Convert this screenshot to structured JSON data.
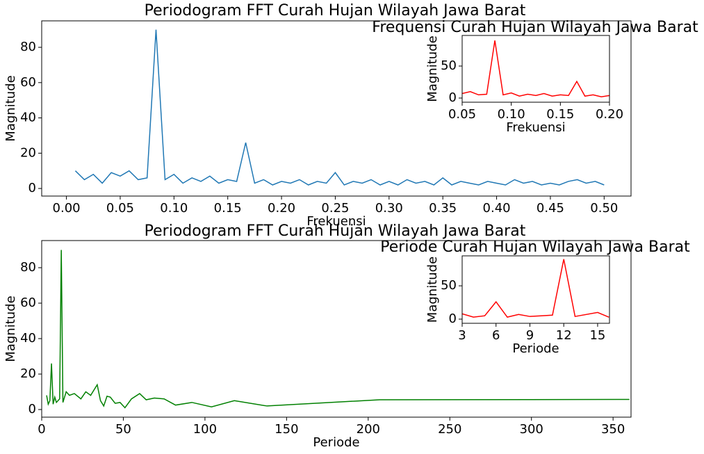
{
  "chart_data": [
    {
      "type": "line",
      "title": "Periodogram FFT Curah Hujan Wilayah Jawa Barat",
      "xlabel": "Frekuensi",
      "ylabel": "Magnitude",
      "color": "#1f77b4",
      "x": [
        0.0083,
        0.0167,
        0.025,
        0.0333,
        0.0417,
        0.05,
        0.0583,
        0.0667,
        0.075,
        0.0833,
        0.0917,
        0.1,
        0.1083,
        0.1167,
        0.125,
        0.1333,
        0.1417,
        0.15,
        0.1583,
        0.1667,
        0.175,
        0.1833,
        0.1917,
        0.2,
        0.2083,
        0.2167,
        0.225,
        0.2333,
        0.2417,
        0.25,
        0.2583,
        0.2667,
        0.275,
        0.2833,
        0.2917,
        0.3,
        0.3083,
        0.3167,
        0.325,
        0.3333,
        0.3417,
        0.35,
        0.3583,
        0.3667,
        0.375,
        0.3833,
        0.3917,
        0.4,
        0.4083,
        0.4167,
        0.425,
        0.4333,
        0.4417,
        0.45,
        0.4583,
        0.4667,
        0.475,
        0.4833,
        0.4917,
        0.5
      ],
      "values": [
        10,
        5,
        8,
        3,
        9,
        7,
        10,
        5,
        6,
        90,
        5,
        8,
        3,
        6,
        4,
        7,
        3,
        5,
        4,
        26,
        3,
        5,
        2,
        4,
        3,
        5,
        2,
        4,
        3,
        9,
        2,
        4,
        3,
        5,
        2,
        4,
        2,
        5,
        3,
        4,
        2,
        6,
        2,
        4,
        3,
        2,
        4,
        3,
        2,
        5,
        3,
        4,
        2,
        3,
        2,
        4,
        5,
        3,
        4,
        2
      ],
      "xlim": [
        -0.023,
        0.525
      ],
      "ylim": [
        -4.3,
        95
      ],
      "xticks": [
        {
          "value": 0,
          "label": "0.00"
        },
        {
          "value": 0.05,
          "label": "0.05"
        },
        {
          "value": 0.1,
          "label": "0.10"
        },
        {
          "value": 0.15,
          "label": "0.15"
        },
        {
          "value": 0.2,
          "label": "0.20"
        },
        {
          "value": 0.25,
          "label": "0.25"
        },
        {
          "value": 0.3,
          "label": "0.30"
        },
        {
          "value": 0.35,
          "label": "0.35"
        },
        {
          "value": 0.4,
          "label": "0.40"
        },
        {
          "value": 0.45,
          "label": "0.45"
        },
        {
          "value": 0.5,
          "label": "0.50"
        }
      ],
      "yticks": [
        0,
        20,
        40,
        60,
        80
      ]
    },
    {
      "type": "line",
      "title": "Frequensi Curah Hujan Wilayah Jawa Barat",
      "xlabel": "Frekuensi",
      "ylabel": "Magnitude",
      "color": "#ff0000",
      "x": [
        0.05,
        0.0583,
        0.0667,
        0.075,
        0.0833,
        0.0917,
        0.1,
        0.1083,
        0.1167,
        0.125,
        0.1333,
        0.1417,
        0.15,
        0.1583,
        0.1667,
        0.175,
        0.1833,
        0.1917,
        0.2
      ],
      "values": [
        7,
        10,
        5,
        6,
        90,
        5,
        8,
        3,
        6,
        4,
        7,
        3,
        5,
        4,
        26,
        3,
        5,
        2,
        4
      ],
      "xlim": [
        0.05,
        0.2
      ],
      "ylim": [
        -6.5,
        97.8
      ],
      "xticks": [
        {
          "value": 0.05,
          "label": "0.05"
        },
        {
          "value": 0.1,
          "label": "0.10"
        },
        {
          "value": 0.15,
          "label": "0.15"
        },
        {
          "value": 0.2,
          "label": "0.20"
        }
      ],
      "yticks": [
        0,
        50
      ]
    },
    {
      "type": "line",
      "title": "Periodogram FFT Curah Hujan Wilayah Jawa Barat",
      "xlabel": "Periode",
      "ylabel": "Magnitude",
      "color": "#008000",
      "x": [
        360,
        207,
        138,
        118,
        104,
        92,
        82,
        75,
        69,
        64,
        60,
        55,
        51,
        48,
        45,
        42,
        40,
        38,
        36,
        34,
        30,
        27,
        24,
        20,
        17,
        15,
        13,
        12,
        11,
        10,
        9,
        8,
        7,
        6,
        5,
        4,
        3
      ],
      "values": [
        5.7,
        5.5,
        2,
        5,
        1.5,
        4,
        2.5,
        6,
        6.5,
        5.5,
        9,
        6,
        1,
        4,
        3.5,
        7,
        7.5,
        2,
        5,
        14,
        8,
        10,
        6,
        9,
        8,
        10,
        4,
        90,
        6,
        5,
        4,
        7,
        3,
        26,
        5,
        3,
        8
      ],
      "xlim": [
        0,
        361
      ],
      "ylim": [
        -4.3,
        95.3
      ],
      "xticks": [
        0,
        50,
        100,
        150,
        200,
        250,
        300,
        350
      ],
      "yticks": [
        0,
        20,
        40,
        60,
        80
      ]
    },
    {
      "type": "line",
      "title": "Periode Curah Hujan Wilayah Jawa Barat",
      "xlabel": "Periode",
      "ylabel": "Magnitude",
      "color": "#ff0000",
      "x": [
        16,
        15,
        13,
        12,
        11,
        10,
        9,
        8,
        7,
        6,
        5,
        4,
        3
      ],
      "values": [
        3,
        10,
        4,
        90,
        6,
        5,
        4,
        7,
        3,
        26,
        5,
        3,
        8
      ],
      "xlim": [
        3,
        16.05
      ],
      "ylim": [
        -6.25,
        95
      ],
      "xticks": [
        3,
        6,
        9,
        12,
        15
      ],
      "yticks": [
        0,
        50
      ]
    }
  ]
}
